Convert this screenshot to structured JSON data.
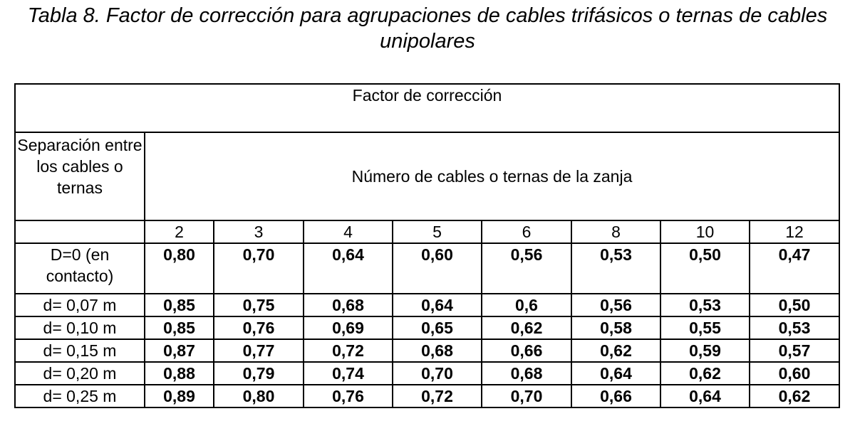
{
  "title": "Tabla 8. Factor de corrección para agrupaciones de cables trifásicos o ternas de cables unipolares",
  "table": {
    "header": "Factor de corrección",
    "row_label_header": "Separación entre los cables o ternas",
    "columns_header": "Número de cables o ternas de la zanja",
    "columns": [
      "2",
      "3",
      "4",
      "5",
      "6",
      "8",
      "10",
      "12"
    ],
    "rows": [
      {
        "label": "D=0 (en contacto)",
        "values": [
          "0,80",
          "0,70",
          "0,64",
          "0,60",
          "0,56",
          "0,53",
          "0,50",
          "0,47"
        ]
      },
      {
        "label": "d= 0,07 m",
        "values": [
          "0,85",
          "0,75",
          "0,68",
          "0,64",
          "0,6",
          "0,56",
          "0,53",
          "0,50"
        ]
      },
      {
        "label": "d= 0,10 m",
        "values": [
          "0,85",
          "0,76",
          "0,69",
          "0,65",
          "0,62",
          "0,58",
          "0,55",
          "0,53"
        ]
      },
      {
        "label": "d= 0,15 m",
        "values": [
          "0,87",
          "0,77",
          "0,72",
          "0,68",
          "0,66",
          "0,62",
          "0,59",
          "0,57"
        ]
      },
      {
        "label": "d= 0,20 m",
        "values": [
          "0,88",
          "0,79",
          "0,74",
          "0,70",
          "0,68",
          "0,64",
          "0,62",
          "0,60"
        ]
      },
      {
        "label": "d= 0,25 m",
        "values": [
          "0,89",
          "0,80",
          "0,76",
          "0,72",
          "0,70",
          "0,66",
          "0,64",
          "0,62"
        ]
      }
    ]
  }
}
